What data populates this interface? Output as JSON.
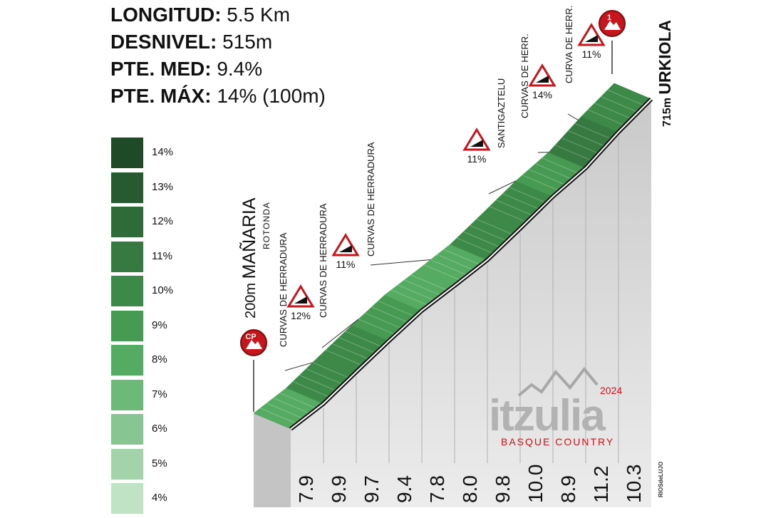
{
  "stats": [
    {
      "label": "LONGITUD:",
      "value": "5.5 Km"
    },
    {
      "label": "DESNIVEL:",
      "value": "515m"
    },
    {
      "label": "PTE. MED:",
      "value": "9.4%"
    },
    {
      "label": "PTE. MÁX:",
      "value": "14% (100m)"
    }
  ],
  "legend": [
    {
      "label": "14%",
      "color": "#1f4a27"
    },
    {
      "label": "13%",
      "color": "#285a31"
    },
    {
      "label": "12%",
      "color": "#2f6a39"
    },
    {
      "label": "11%",
      "color": "#367a41"
    },
    {
      "label": "10%",
      "color": "#3d8a48"
    },
    {
      "label": "9%",
      "color": "#469a51"
    },
    {
      "label": "8%",
      "color": "#56ab62"
    },
    {
      "label": "7%",
      "color": "#6dba78"
    },
    {
      "label": "6%",
      "color": "#87c692"
    },
    {
      "label": "5%",
      "color": "#a3d3ab"
    },
    {
      "label": "4%",
      "color": "#c0e2c5"
    }
  ],
  "chart_data": {
    "type": "area",
    "segments_km": 0.5,
    "gradients": [
      7.9,
      9.9,
      9.7,
      9.4,
      7.8,
      8.0,
      9.8,
      10.0,
      8.9,
      11.2,
      10.3
    ],
    "start": {
      "elevation": "200m",
      "name": "MAÑARIA",
      "sub": "ROTONDA",
      "badge": "CP"
    },
    "finish": {
      "elevation": "715m",
      "name": "URKIOLA",
      "badge": "1"
    },
    "annotations": [
      {
        "text": "CURVAS DE HERRADURA",
        "km": 0.9
      },
      {
        "text": "CURVAS DE HERRADURA",
        "km": 1.6
      },
      {
        "text": "CURVAS DE HERRADURA",
        "km": 2.7
      },
      {
        "text": "SANTIGAZTELU",
        "km": 4.0
      },
      {
        "text": "CURVAS DE HERR.",
        "km": 4.5
      },
      {
        "text": "CURVA DE HERR.",
        "km": 4.95
      }
    ],
    "warnings": [
      {
        "label": "12%",
        "km": 1.1
      },
      {
        "label": "11%",
        "km": 2.2
      },
      {
        "label": "11%",
        "km": 3.8
      },
      {
        "label": "14%",
        "km": 4.6
      },
      {
        "label": "11%",
        "km": 5.2
      }
    ],
    "logo": {
      "name": "itzulia",
      "year": "2024",
      "sub": "BASQUE COUNTRY"
    },
    "credit": "RIOSdeLUJO"
  }
}
